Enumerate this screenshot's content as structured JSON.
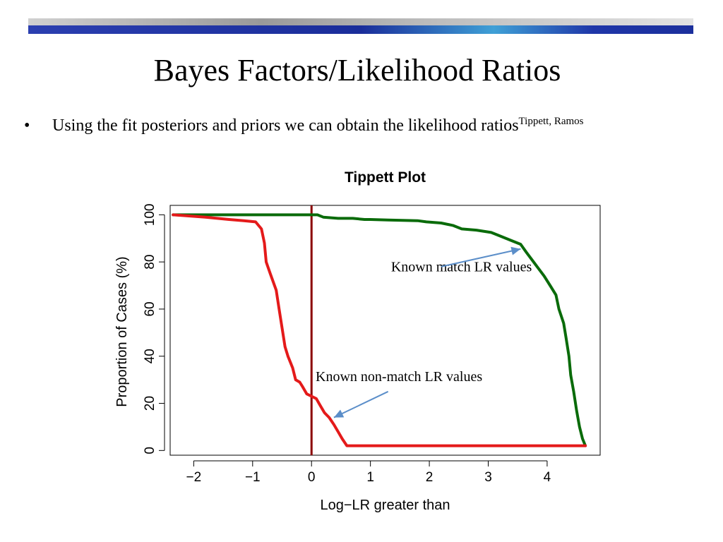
{
  "slide": {
    "title": "Bayes Factors/Likelihood Ratios",
    "bullet_symbol": "•",
    "bullet_text": "Using the fit posteriors and priors we can obtain the likelihood ratios",
    "bullet_superscript": "Tippett, Ramos"
  },
  "colors": {
    "known_match": "#0a6b0a",
    "known_non_match": "#e41a1a",
    "threshold_line": "#8b0000",
    "arrow": "#5b8ec9",
    "banner_dark": "#1b2f9c",
    "banner_light": "#c8c8c8"
  },
  "chart_data": {
    "type": "line",
    "title": "Tippett Plot",
    "xlabel": "Log−LR greater than",
    "ylabel": "Proportion of Cases (%)",
    "xlim": [
      -2.4,
      4.9
    ],
    "ylim": [
      -2,
      104
    ],
    "x_ticks": [
      -2,
      -1,
      0,
      1,
      2,
      3,
      4
    ],
    "x_tick_labels": [
      "−2",
      "−1",
      "0",
      "1",
      "2",
      "3",
      "4"
    ],
    "y_ticks": [
      0,
      20,
      40,
      60,
      80,
      100
    ],
    "y_tick_labels": [
      "0",
      "20",
      "40",
      "60",
      "80",
      "100"
    ],
    "grid": false,
    "vertical_line_x": 0,
    "series": [
      {
        "name": "Known match LR values",
        "color": "#0a6b0a",
        "points": [
          [
            -2.35,
            100
          ],
          [
            0.1,
            100
          ],
          [
            0.2,
            99
          ],
          [
            0.45,
            98.5
          ],
          [
            0.7,
            98.5
          ],
          [
            0.9,
            98
          ],
          [
            1.0,
            98
          ],
          [
            1.3,
            97.8
          ],
          [
            1.8,
            97.5
          ],
          [
            1.95,
            97
          ],
          [
            2.2,
            96.5
          ],
          [
            2.4,
            95.5
          ],
          [
            2.55,
            94
          ],
          [
            2.8,
            93.5
          ],
          [
            3.05,
            92.5
          ],
          [
            3.2,
            91
          ],
          [
            3.4,
            89
          ],
          [
            3.55,
            87.5
          ],
          [
            3.65,
            84
          ],
          [
            3.8,
            79
          ],
          [
            3.95,
            74
          ],
          [
            4.05,
            70
          ],
          [
            4.15,
            66
          ],
          [
            4.2,
            60
          ],
          [
            4.28,
            54
          ],
          [
            4.32,
            48
          ],
          [
            4.37,
            40
          ],
          [
            4.4,
            32
          ],
          [
            4.45,
            25
          ],
          [
            4.5,
            17
          ],
          [
            4.55,
            10
          ],
          [
            4.6,
            5
          ],
          [
            4.65,
            2
          ]
        ]
      },
      {
        "name": "Known non-match LR values",
        "color": "#e41a1a",
        "points": [
          [
            -2.35,
            100
          ],
          [
            -1.8,
            99
          ],
          [
            -1.4,
            98
          ],
          [
            -1.15,
            97.5
          ],
          [
            -0.95,
            97
          ],
          [
            -0.85,
            94
          ],
          [
            -0.8,
            88
          ],
          [
            -0.77,
            80
          ],
          [
            -0.7,
            75
          ],
          [
            -0.6,
            68
          ],
          [
            -0.55,
            60
          ],
          [
            -0.5,
            52
          ],
          [
            -0.45,
            44
          ],
          [
            -0.4,
            40
          ],
          [
            -0.32,
            35
          ],
          [
            -0.27,
            30
          ],
          [
            -0.2,
            29
          ],
          [
            -0.15,
            27
          ],
          [
            -0.08,
            24
          ],
          [
            0,
            23
          ],
          [
            0.08,
            22
          ],
          [
            0.15,
            19
          ],
          [
            0.22,
            16
          ],
          [
            0.3,
            14
          ],
          [
            0.38,
            11
          ],
          [
            0.45,
            8
          ],
          [
            0.52,
            5
          ],
          [
            0.6,
            2
          ],
          [
            4.65,
            2
          ]
        ]
      }
    ],
    "annotations": [
      {
        "text": "Known match LR values",
        "text_at": [
          1.35,
          76
        ],
        "arrow_from": [
          2.2,
          78
        ],
        "arrow_to": [
          3.55,
          85.5
        ]
      },
      {
        "text": "Known non-match LR values",
        "text_at": [
          0.07,
          29.5
        ],
        "arrow_from": [
          1.3,
          25
        ],
        "arrow_to": [
          0.38,
          14
        ]
      }
    ]
  }
}
